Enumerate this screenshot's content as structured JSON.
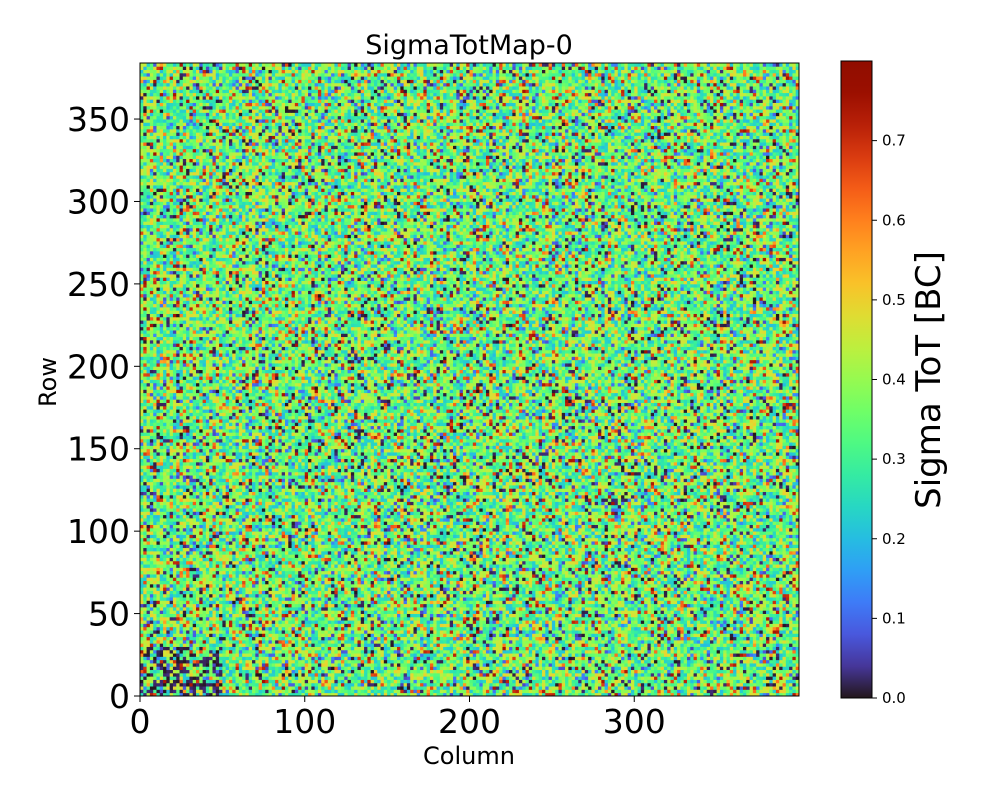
{
  "chart_data": {
    "type": "heatmap",
    "title": "SigmaTotMap-0",
    "xlabel": "Column",
    "ylabel": "Row",
    "colorbar_label": "Sigma ToT [BC]",
    "colormap": "turbo",
    "xlim": [
      0,
      400
    ],
    "ylim": [
      0,
      384
    ],
    "x_ticks": [
      "0",
      "100",
      "200",
      "300"
    ],
    "y_ticks": [
      "0",
      "50",
      "100",
      "150",
      "200",
      "250",
      "300",
      "350"
    ],
    "x_tick_values": [
      0,
      100,
      200,
      300
    ],
    "y_tick_values": [
      0,
      50,
      100,
      150,
      200,
      250,
      300,
      350
    ],
    "colorbar_range": [
      0,
      0.8
    ],
    "colorbar_ticks": [
      "0.0",
      "0.1",
      "0.2",
      "0.3",
      "0.4",
      "0.5",
      "0.6",
      "0.7"
    ],
    "colorbar_tick_values": [
      0,
      0.1,
      0.2,
      0.3,
      0.4,
      0.5,
      0.6,
      0.7
    ],
    "grid": false,
    "description_of_values": "noisy per-pixel map; values mostly 0.2-0.5 with scattered 0.0 and 0.6-0.75 pixels; lower-left corner (column 0-50, row 0-30) has more 0.0 values"
  }
}
